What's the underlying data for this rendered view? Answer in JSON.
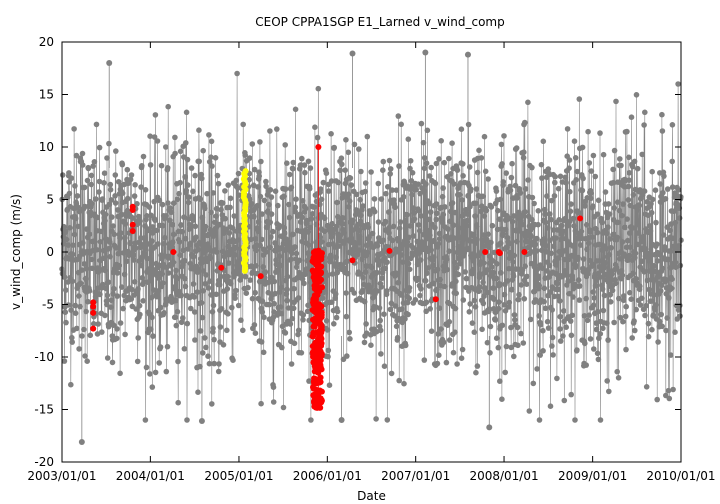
{
  "chart_data": {
    "type": "scatter",
    "title": "CEOP CPPA1SGP E1_Larned  v_wind_comp",
    "xlabel": "Date",
    "ylabel": "v_wind_comp (m/s)",
    "xlim": [
      "2003/01/01",
      "2010/01/01"
    ],
    "ylim": [
      -20,
      20
    ],
    "x_ticks": [
      "2003/01/01",
      "2004/01/01",
      "2005/01/01",
      "2006/01/01",
      "2007/01/01",
      "2008/01/01",
      "2009/01/01",
      "2010/01/01"
    ],
    "y_ticks": [
      -20,
      -15,
      -10,
      -5,
      0,
      5,
      10,
      15,
      20
    ],
    "grid": false,
    "legend": "none",
    "colors": {
      "main": "#808080",
      "yellow": "#ffff00",
      "red": "#ff0000",
      "axis": "#000000"
    },
    "series": [
      {
        "color": "#808080",
        "style": "dense-line-points",
        "description_range": {
          "typical": [
            -10,
            10
          ]
        },
        "extremes": [
          {
            "x": "2003/03/24",
            "y": -18.1
          },
          {
            "x": "2006/03/01",
            "y": -16.0
          },
          {
            "x": "2004/08/01",
            "y": -16.1
          },
          {
            "x": "2007/11/01",
            "y": -16.7
          },
          {
            "x": "2003/07/15",
            "y": 18.0
          },
          {
            "x": "2007/02/10",
            "y": 19.0
          },
          {
            "x": "2007/08/05",
            "y": 18.8
          },
          {
            "x": "2006/04/15",
            "y": 18.9
          }
        ]
      },
      {
        "color": "#ffff00",
        "points": [
          {
            "x": "2005/01/25",
            "y": 7.9
          },
          {
            "x": "2005/01/25",
            "y": 6.5
          },
          {
            "x": "2005/01/25",
            "y": 5.0
          },
          {
            "x": "2005/01/25",
            "y": 3.5
          },
          {
            "x": "2005/01/25",
            "y": 2.0
          },
          {
            "x": "2005/01/25",
            "y": 0.5
          },
          {
            "x": "2005/01/25",
            "y": -0.8
          },
          {
            "x": "2005/01/25",
            "y": -1.8
          }
        ]
      },
      {
        "color": "#ff0000",
        "points": [
          {
            "x": "2003/05/10",
            "y": -4.8
          },
          {
            "x": "2003/05/10",
            "y": -5.2
          },
          {
            "x": "2003/05/10",
            "y": -5.8
          },
          {
            "x": "2003/05/10",
            "y": -7.3
          },
          {
            "x": "2003/10/20",
            "y": 4.3
          },
          {
            "x": "2003/10/20",
            "y": 4.0
          },
          {
            "x": "2003/10/20",
            "y": 2.6
          },
          {
            "x": "2003/10/20",
            "y": 2.0
          },
          {
            "x": "2004/04/05",
            "y": 0.0
          },
          {
            "x": "2004/10/20",
            "y": -1.5
          },
          {
            "x": "2005/04/01",
            "y": -2.3
          },
          {
            "x": "2005/11/25",
            "y": 10.0
          },
          {
            "x": "2005/11/25",
            "y": -14.8
          },
          {
            "x": "2006/04/15",
            "y": -0.8
          },
          {
            "x": "2006/09/15",
            "y": 0.1
          },
          {
            "x": "2007/03/25",
            "y": -4.5
          },
          {
            "x": "2007/10/15",
            "y": 0.0
          },
          {
            "x": "2007/12/10",
            "y": 0.0
          },
          {
            "x": "2007/12/15",
            "y": -0.1
          },
          {
            "x": "2008/03/25",
            "y": 0.0
          },
          {
            "x": "2008/11/10",
            "y": 3.2
          }
        ],
        "dense_cluster": {
          "x_start": "2005/11/01",
          "x_end": "2005/12/10",
          "y_range": [
            -14.9,
            0.2
          ]
        }
      }
    ]
  }
}
